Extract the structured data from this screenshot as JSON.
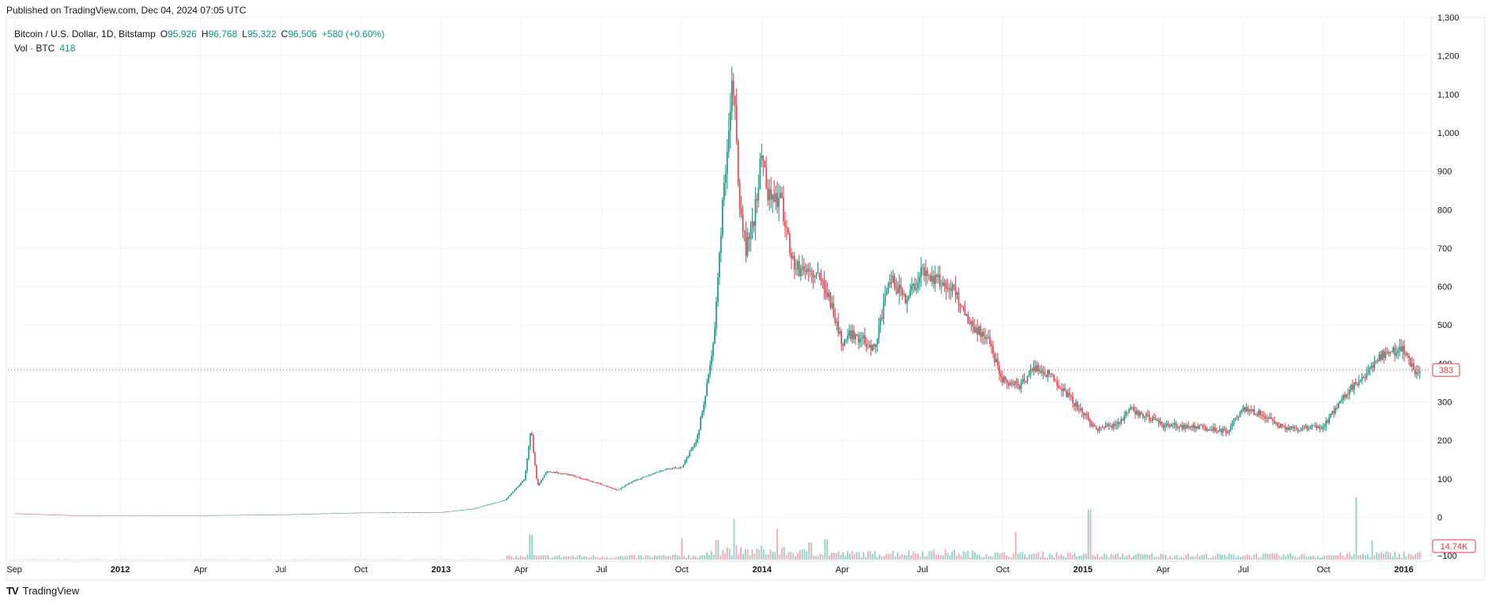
{
  "published": "Published on TradingView.com, Dec 04, 2024 07:05 UTC",
  "legend": {
    "symbol": "Bitcoin / U.S. Dollar, 1D, Bitstamp",
    "o_label": "O",
    "o_value": "95,926",
    "h_label": "H",
    "h_value": "96,768",
    "l_label": "L",
    "l_value": "95,322",
    "c_label": "C",
    "c_value": "96,506",
    "change": "+580 (+0.60%)",
    "vol_label": "Vol · BTC",
    "vol_value": "418"
  },
  "footer": {
    "brand": "TradingView",
    "logo": "TV"
  },
  "colors": {
    "up": "#089981",
    "down": "#f23645",
    "vol_up": "#8fd1c6",
    "vol_down": "#f5a9ae",
    "grid": "#f0f3fa"
  },
  "chart_data": {
    "type": "candlestick",
    "y_axis": {
      "ticks": [
        -100,
        0,
        100,
        200,
        300,
        400,
        500,
        600,
        700,
        800,
        900,
        1000,
        1100,
        1200,
        1300
      ],
      "tick_labels": [
        "−100",
        "0",
        "100",
        "200",
        "300",
        "400",
        "500",
        "600",
        "700",
        "800",
        "900",
        "1,000",
        "1,100",
        "1,200",
        "1,300"
      ],
      "range": [
        -110,
        1300
      ]
    },
    "x_axis": {
      "labels": [
        {
          "label": "Sep",
          "t": 2011.67,
          "bold": false
        },
        {
          "label": "2012",
          "t": 2012.0,
          "bold": true
        },
        {
          "label": "Apr",
          "t": 2012.25,
          "bold": false
        },
        {
          "label": "Jul",
          "t": 2012.5,
          "bold": false
        },
        {
          "label": "Oct",
          "t": 2012.75,
          "bold": false
        },
        {
          "label": "2013",
          "t": 2013.0,
          "bold": true
        },
        {
          "label": "Apr",
          "t": 2013.25,
          "bold": false
        },
        {
          "label": "Jul",
          "t": 2013.5,
          "bold": false
        },
        {
          "label": "Oct",
          "t": 2013.75,
          "bold": false
        },
        {
          "label": "2014",
          "t": 2014.0,
          "bold": true
        },
        {
          "label": "Apr",
          "t": 2014.25,
          "bold": false
        },
        {
          "label": "Jul",
          "t": 2014.5,
          "bold": false
        },
        {
          "label": "Oct",
          "t": 2014.75,
          "bold": false
        },
        {
          "label": "2015",
          "t": 2015.0,
          "bold": true
        },
        {
          "label": "Apr",
          "t": 2015.25,
          "bold": false
        },
        {
          "label": "Jul",
          "t": 2015.5,
          "bold": false
        },
        {
          "label": "Oct",
          "t": 2015.75,
          "bold": false
        },
        {
          "label": "2016",
          "t": 2016.0,
          "bold": true
        }
      ],
      "range": [
        2011.65,
        2016.08
      ]
    },
    "price_path": [
      [
        2011.67,
        10
      ],
      [
        2011.85,
        5
      ],
      [
        2012.0,
        5
      ],
      [
        2012.25,
        5
      ],
      [
        2012.5,
        7
      ],
      [
        2012.75,
        12
      ],
      [
        2013.0,
        13
      ],
      [
        2013.1,
        22
      ],
      [
        2013.2,
        45
      ],
      [
        2013.26,
        100
      ],
      [
        2013.28,
        230
      ],
      [
        2013.3,
        80
      ],
      [
        2013.33,
        120
      ],
      [
        2013.4,
        110
      ],
      [
        2013.5,
        85
      ],
      [
        2013.55,
        70
      ],
      [
        2013.6,
        95
      ],
      [
        2013.7,
        125
      ],
      [
        2013.75,
        130
      ],
      [
        2013.8,
        210
      ],
      [
        2013.85,
        450
      ],
      [
        2013.88,
        850
      ],
      [
        2013.91,
        1150
      ],
      [
        2013.93,
        800
      ],
      [
        2013.95,
        700
      ],
      [
        2013.97,
        750
      ],
      [
        2014.0,
        950
      ],
      [
        2014.02,
        840
      ],
      [
        2014.06,
        820
      ],
      [
        2014.1,
        650
      ],
      [
        2014.15,
        640
      ],
      [
        2014.2,
        600
      ],
      [
        2014.25,
        450
      ],
      [
        2014.28,
        480
      ],
      [
        2014.35,
        440
      ],
      [
        2014.4,
        620
      ],
      [
        2014.45,
        570
      ],
      [
        2014.5,
        640
      ],
      [
        2014.6,
        590
      ],
      [
        2014.65,
        500
      ],
      [
        2014.7,
        470
      ],
      [
        2014.75,
        360
      ],
      [
        2014.8,
        340
      ],
      [
        2014.85,
        390
      ],
      [
        2014.9,
        370
      ],
      [
        2014.95,
        320
      ],
      [
        2015.0,
        270
      ],
      [
        2015.04,
        230
      ],
      [
        2015.1,
        240
      ],
      [
        2015.15,
        280
      ],
      [
        2015.25,
        240
      ],
      [
        2015.35,
        235
      ],
      [
        2015.45,
        225
      ],
      [
        2015.5,
        280
      ],
      [
        2015.55,
        270
      ],
      [
        2015.62,
        235
      ],
      [
        2015.68,
        230
      ],
      [
        2015.75,
        235
      ],
      [
        2015.8,
        300
      ],
      [
        2015.84,
        340
      ],
      [
        2015.88,
        360
      ],
      [
        2015.92,
        420
      ],
      [
        2015.96,
        430
      ],
      [
        2016.0,
        440
      ],
      [
        2016.03,
        380
      ],
      [
        2016.05,
        383
      ]
    ],
    "volume_spikes": [
      [
        2013.28,
        4200
      ],
      [
        2013.75,
        3600
      ],
      [
        2013.86,
        3300
      ],
      [
        2013.91,
        6800
      ],
      [
        2014.05,
        5200
      ],
      [
        2014.15,
        2900
      ],
      [
        2014.2,
        3400
      ],
      [
        2014.79,
        4600
      ],
      [
        2015.02,
        8400
      ],
      [
        2015.85,
        10500
      ],
      [
        2015.9,
        3200
      ]
    ],
    "last_price": {
      "value": 383,
      "label": "383"
    },
    "last_volume": {
      "label": "14.74K"
    }
  }
}
